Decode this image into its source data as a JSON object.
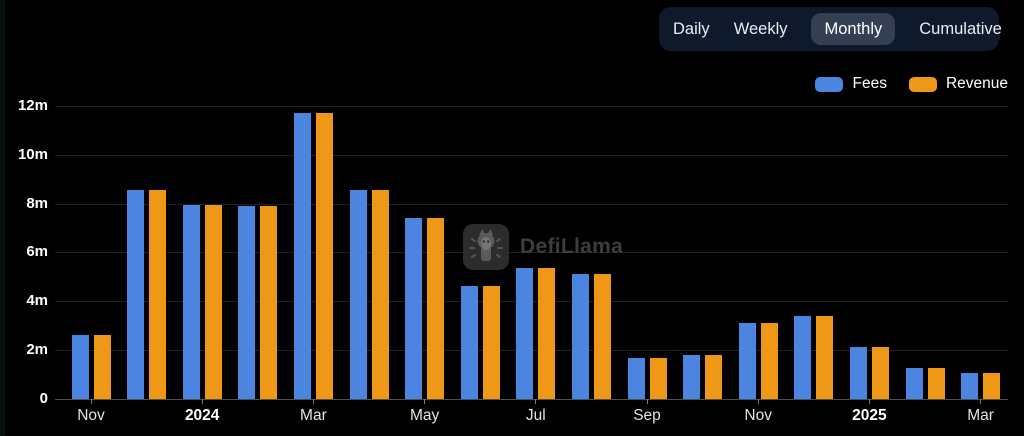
{
  "tabs": {
    "items": [
      {
        "label": "Daily",
        "selected": false
      },
      {
        "label": "Weekly",
        "selected": false
      },
      {
        "label": "Monthly",
        "selected": true
      },
      {
        "label": "Cumulative",
        "selected": false
      }
    ]
  },
  "legend": {
    "items": [
      {
        "label": "Fees",
        "color": "#4c85e0"
      },
      {
        "label": "Revenue",
        "color": "#ef9817"
      }
    ]
  },
  "watermark": {
    "text": "DefiLlama"
  },
  "colors": {
    "background": "#000000",
    "fees": "#4c85e0",
    "revenue": "#ef9817",
    "tab_bar": "#0e1a2c",
    "tab_selected_pill": "#343f54",
    "gridline": "#1f1f1f",
    "axis_line": "#4f4f4f"
  },
  "chart_data": {
    "type": "bar",
    "title": "",
    "unit": "m",
    "categories": [
      "Nov 2023",
      "Dec 2023",
      "Jan 2024",
      "Feb 2024",
      "Mar 2024",
      "Apr 2024",
      "May 2024",
      "Jun 2024",
      "Jul 2024",
      "Aug 2024",
      "Sep 2024",
      "Oct 2024",
      "Nov 2024",
      "Dec 2024",
      "Jan 2025",
      "Feb 2025",
      "Mar 2025"
    ],
    "series": [
      {
        "name": "Fees",
        "color": "#4c85e0",
        "values": [
          2.6,
          8.55,
          7.95,
          7.9,
          11.7,
          8.55,
          7.4,
          4.6,
          5.35,
          5.1,
          1.65,
          1.8,
          3.1,
          3.4,
          2.1,
          1.25,
          1.05
        ]
      },
      {
        "name": "Revenue",
        "color": "#ef9817",
        "values": [
          2.6,
          8.55,
          7.95,
          7.9,
          11.7,
          8.55,
          7.4,
          4.6,
          5.35,
          5.1,
          1.65,
          1.8,
          3.1,
          3.4,
          2.1,
          1.25,
          1.05
        ]
      }
    ],
    "ylim": [
      0,
      12
    ],
    "grid": true,
    "legend_position": "top-right",
    "y_ticks": [
      {
        "label": "12m",
        "value": 12
      },
      {
        "label": "10m",
        "value": 10
      },
      {
        "label": "8m",
        "value": 8
      },
      {
        "label": "6m",
        "value": 6
      },
      {
        "label": "4m",
        "value": 4
      },
      {
        "label": "2m",
        "value": 2
      },
      {
        "label": "0",
        "value": 0
      }
    ],
    "x_ticks": [
      {
        "label": "Nov",
        "month_index": 0,
        "bold": false
      },
      {
        "label": "2024",
        "month_index": 2,
        "bold": true
      },
      {
        "label": "Mar",
        "month_index": 4,
        "bold": false
      },
      {
        "label": "May",
        "month_index": 6,
        "bold": false
      },
      {
        "label": "Jul",
        "month_index": 8,
        "bold": false
      },
      {
        "label": "Sep",
        "month_index": 10,
        "bold": false
      },
      {
        "label": "Nov",
        "month_index": 12,
        "bold": false
      },
      {
        "label": "2025",
        "month_index": 14,
        "bold": true
      },
      {
        "label": "Mar",
        "month_index": 16,
        "bold": false
      }
    ]
  }
}
